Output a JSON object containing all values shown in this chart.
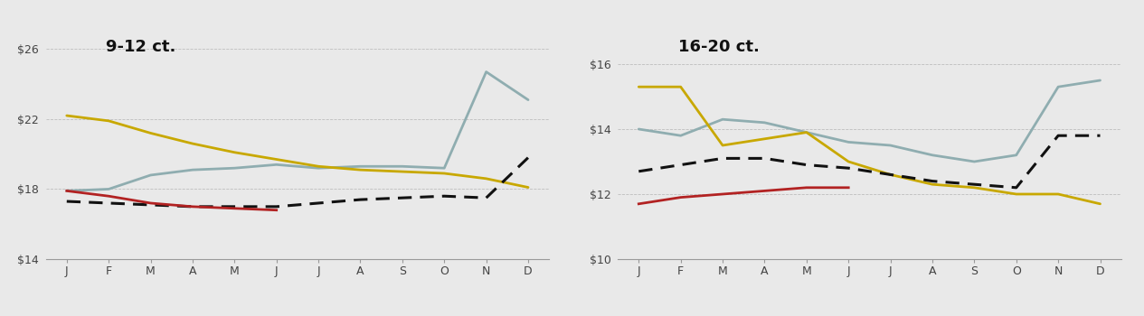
{
  "months": [
    "J",
    "F",
    "M",
    "A",
    "M",
    "J",
    "J",
    "A",
    "S",
    "O",
    "N",
    "D"
  ],
  "left_title": "9-12 ct.",
  "left_ylim": [
    14,
    27
  ],
  "left_yticks": [
    14,
    18,
    22,
    26
  ],
  "left_2013": [
    17.9,
    17.6,
    17.2,
    17.0,
    16.9,
    16.8,
    null,
    null,
    null,
    null,
    null,
    null
  ],
  "left_2012": [
    22.2,
    21.9,
    21.2,
    20.6,
    20.1,
    19.7,
    19.3,
    19.1,
    19.0,
    18.9,
    18.6,
    18.1
  ],
  "left_2011": [
    17.9,
    18.0,
    18.8,
    19.1,
    19.2,
    19.4,
    19.2,
    19.3,
    19.3,
    19.2,
    24.7,
    23.1
  ],
  "left_avg": [
    17.3,
    17.2,
    17.1,
    17.0,
    17.0,
    17.0,
    17.2,
    17.4,
    17.5,
    17.6,
    17.5,
    19.8
  ],
  "right_title": "16-20 ct.",
  "right_ylim": [
    10,
    17
  ],
  "right_yticks": [
    10,
    12,
    14,
    16
  ],
  "right_2013": [
    11.7,
    11.9,
    12.0,
    12.1,
    12.2,
    12.2,
    null,
    null,
    null,
    null,
    null,
    null
  ],
  "right_2012": [
    15.3,
    15.3,
    13.5,
    13.7,
    13.9,
    13.0,
    12.6,
    12.3,
    12.2,
    12.0,
    12.0,
    11.7
  ],
  "right_2011": [
    14.0,
    13.8,
    14.3,
    14.2,
    13.9,
    13.6,
    13.5,
    13.2,
    13.0,
    13.2,
    15.3,
    15.5
  ],
  "right_avg": [
    12.7,
    12.9,
    13.1,
    13.1,
    12.9,
    12.8,
    12.6,
    12.4,
    12.3,
    12.2,
    13.8,
    13.8
  ],
  "color_2013": "#b22222",
  "color_2012": "#c8a800",
  "color_2011": "#8fadb0",
  "color_avg": "#111111",
  "bg_color": "#e9e9e9",
  "gridcolor": "#aaaaaa"
}
